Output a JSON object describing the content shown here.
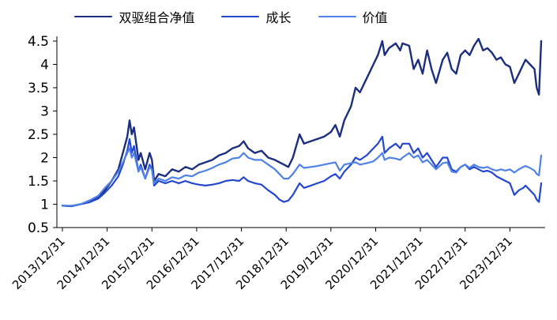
{
  "chart_data": {
    "type": "line",
    "title": "",
    "xlabel": "",
    "ylabel": "",
    "x_unit": "years since 2013/12/31",
    "xlim": [
      0,
      10.7
    ],
    "ylim": [
      0.5,
      4.5
    ],
    "grid": false,
    "legend_position": "top",
    "x_ticks": {
      "positions": [
        0,
        1,
        2,
        3,
        4,
        5,
        6,
        7,
        8,
        9,
        10
      ],
      "labels": [
        "2013/12/31",
        "2014/12/31",
        "2015/12/31",
        "2016/12/31",
        "2017/12/31",
        "2018/12/31",
        "2019/12/31",
        "2020/12/31",
        "2021/12/31",
        "2022/12/31",
        "2023/12/31"
      ]
    },
    "y_ticks": {
      "values": [
        0.5,
        1,
        1.5,
        2,
        2.5,
        3,
        3.5,
        4,
        4.5
      ],
      "labels": [
        "0.5",
        "1",
        "1.5",
        "2",
        "2.5",
        "3",
        "3.5",
        "4",
        "4.5"
      ]
    },
    "x": [
      0,
      0.2,
      0.4,
      0.6,
      0.8,
      0.95,
      1.1,
      1.25,
      1.35,
      1.45,
      1.5,
      1.55,
      1.6,
      1.7,
      1.75,
      1.85,
      1.95,
      2,
      2.05,
      2.15,
      2.3,
      2.45,
      2.6,
      2.75,
      2.9,
      3.05,
      3.2,
      3.35,
      3.5,
      3.65,
      3.8,
      3.95,
      4.05,
      4.15,
      4.3,
      4.45,
      4.6,
      4.75,
      4.85,
      4.95,
      5.05,
      5.15,
      5.3,
      5.4,
      5.55,
      5.7,
      5.85,
      6,
      6.1,
      6.2,
      6.3,
      6.45,
      6.55,
      6.65,
      6.8,
      6.95,
      7.05,
      7.15,
      7.2,
      7.3,
      7.45,
      7.55,
      7.6,
      7.75,
      7.85,
      7.95,
      8.05,
      8.15,
      8.25,
      8.35,
      8.5,
      8.6,
      8.7,
      8.8,
      8.9,
      9,
      9.1,
      9.2,
      9.3,
      9.4,
      9.5,
      9.6,
      9.7,
      9.8,
      9.9,
      10,
      10.1,
      10.2,
      10.3,
      10.35,
      10.45,
      10.55,
      10.6,
      10.65,
      10.7
    ],
    "series": [
      {
        "name": "双驱组合净值",
        "color": "#1C2E7E",
        "width": 2.4,
        "values": [
          0.97,
          0.96,
          1,
          1.05,
          1.15,
          1.3,
          1.5,
          1.75,
          2.1,
          2.45,
          2.8,
          2.5,
          2.65,
          1.95,
          2.1,
          1.75,
          2.1,
          1.95,
          1.5,
          1.65,
          1.6,
          1.75,
          1.7,
          1.8,
          1.75,
          1.85,
          1.9,
          1.95,
          2.05,
          2.1,
          2.2,
          2.25,
          2.35,
          2.2,
          2.1,
          2.15,
          2.0,
          1.95,
          1.9,
          1.85,
          1.8,
          2.0,
          2.5,
          2.3,
          2.35,
          2.4,
          2.45,
          2.55,
          2.7,
          2.45,
          2.8,
          3.1,
          3.5,
          3.4,
          3.7,
          4.0,
          4.2,
          4.5,
          4.2,
          4.35,
          4.45,
          4.3,
          4.45,
          4.4,
          3.9,
          4.1,
          3.8,
          4.3,
          3.9,
          3.6,
          4.1,
          4.25,
          3.9,
          3.8,
          4.2,
          4.3,
          4.2,
          4.4,
          4.55,
          4.3,
          4.35,
          4.25,
          4.1,
          4.15,
          4.0,
          3.95,
          3.6,
          3.8,
          4.0,
          4.1,
          4.0,
          3.9,
          3.5,
          3.35,
          4.5
        ]
      },
      {
        "name": "成长",
        "color": "#2447CE",
        "width": 2.2,
        "values": [
          0.97,
          0.96,
          1,
          1.04,
          1.12,
          1.25,
          1.4,
          1.6,
          1.85,
          2.15,
          2.4,
          2.1,
          2.25,
          1.7,
          1.85,
          1.55,
          1.85,
          1.75,
          1.4,
          1.5,
          1.45,
          1.5,
          1.45,
          1.5,
          1.45,
          1.42,
          1.4,
          1.42,
          1.45,
          1.5,
          1.52,
          1.5,
          1.58,
          1.5,
          1.45,
          1.42,
          1.3,
          1.2,
          1.1,
          1.05,
          1.08,
          1.2,
          1.45,
          1.35,
          1.4,
          1.45,
          1.5,
          1.6,
          1.65,
          1.55,
          1.7,
          1.85,
          2.0,
          1.95,
          2.05,
          2.2,
          2.3,
          2.45,
          2.1,
          2.2,
          2.3,
          2.2,
          2.3,
          2.3,
          2.1,
          2.2,
          2.0,
          2.1,
          1.95,
          1.8,
          2.0,
          2.0,
          1.75,
          1.7,
          1.8,
          1.85,
          1.75,
          1.8,
          1.75,
          1.7,
          1.72,
          1.68,
          1.6,
          1.55,
          1.5,
          1.45,
          1.2,
          1.3,
          1.35,
          1.4,
          1.3,
          1.2,
          1.1,
          1.05,
          1.45
        ]
      },
      {
        "name": "价值",
        "color": "#4F82E6",
        "width": 2.2,
        "values": [
          0.97,
          0.97,
          1,
          1.08,
          1.18,
          1.35,
          1.5,
          1.7,
          1.9,
          2.1,
          2.2,
          2.0,
          2.1,
          1.7,
          1.8,
          1.55,
          1.8,
          1.75,
          1.45,
          1.55,
          1.5,
          1.58,
          1.55,
          1.62,
          1.6,
          1.68,
          1.72,
          1.78,
          1.85,
          1.9,
          1.98,
          2.0,
          2.1,
          2.0,
          1.95,
          1.95,
          1.85,
          1.75,
          1.65,
          1.55,
          1.55,
          1.65,
          1.85,
          1.78,
          1.8,
          1.82,
          1.85,
          1.88,
          1.9,
          1.72,
          1.85,
          1.88,
          1.9,
          1.85,
          1.88,
          1.92,
          2.0,
          2.1,
          1.95,
          2.0,
          1.98,
          1.95,
          2.0,
          2.1,
          2.0,
          2.05,
          1.9,
          1.95,
          1.85,
          1.75,
          1.88,
          1.9,
          1.7,
          1.68,
          1.8,
          1.85,
          1.78,
          1.85,
          1.8,
          1.78,
          1.8,
          1.75,
          1.72,
          1.75,
          1.72,
          1.75,
          1.68,
          1.75,
          1.8,
          1.82,
          1.78,
          1.72,
          1.65,
          1.62,
          2.05
        ]
      }
    ]
  }
}
